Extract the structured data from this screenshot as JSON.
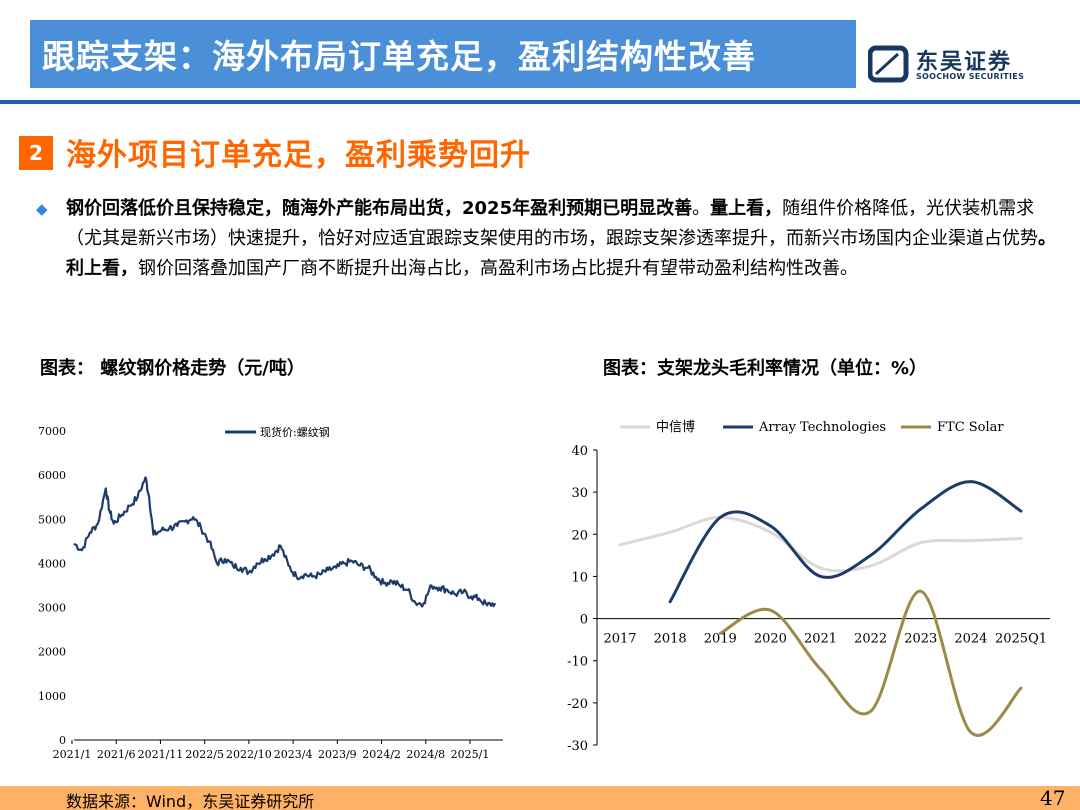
{
  "header": {
    "title": "跟踪支架：海外布局订单充足，盈利结构性改善",
    "logo_name": "东吴证券",
    "logo_sub": "SOOCHOW SECURITIES"
  },
  "section": {
    "number": "2",
    "title": "海外项目订单充足，盈利乘势回升"
  },
  "body": {
    "bullet": "◆",
    "seg1_bold": "钢价回落低价且保持稳定，随海外产能布局出货，2025年盈利预期已明显改善",
    "seg2": "。",
    "seg3_bold": "量上看，",
    "seg4": "随组件价格降低，光伏装机需求（尤其是新兴市场）快速提升，恰好对应适宜跟踪支架使用的市场，跟踪支架渗透率提升，而新兴市场国内企业渠道占优势",
    "seg5_bold": "。利上看，",
    "seg6": "钢价回落叠加国产厂商不断提升出海占比，高盈利市场占比提升有望带动盈利结构性改善。"
  },
  "captions": {
    "left": "图表： 螺纹钢价格走势（元/吨）",
    "right": "图表：支架龙头毛利率情况（单位：%）"
  },
  "footer": {
    "source": "数据来源：Wind，东吴证券研究所",
    "page": "47"
  },
  "colors": {
    "accent_orange": "#ff6600",
    "title_blue": "#4a8fd8",
    "navy": "#1f3b6b",
    "olive": "#9c8a4a",
    "light_gray": "#d9d9d9"
  },
  "chart_data": [
    {
      "type": "line",
      "title": "",
      "xlabel": "",
      "ylabel": "",
      "ylim": [
        0,
        7000
      ],
      "yticks": [
        "7000",
        "6000",
        "5000",
        "4000",
        "3000",
        "2000",
        "1000",
        "0"
      ],
      "xticks": [
        "2021/1",
        "2021/6",
        "2021/11",
        "2022/5",
        "2022/10",
        "2023/4",
        "2023/9",
        "2024/2",
        "2024/8",
        "2025/1"
      ],
      "legend": "top",
      "grid": false,
      "series": [
        {
          "name": "现货价:螺纹钢",
          "color": "#1f3b6b",
          "x": [
            "2021-01",
            "2021-02",
            "2021-03",
            "2021-04",
            "2021-05",
            "2021-05-15",
            "2021-06",
            "2021-07",
            "2021-08",
            "2021-09",
            "2021-10",
            "2021-10-15",
            "2021-11",
            "2021-12",
            "2022-01",
            "2022-02",
            "2022-03",
            "2022-04",
            "2022-05",
            "2022-06",
            "2022-07",
            "2022-08",
            "2022-09",
            "2022-10",
            "2022-11",
            "2022-12",
            "2023-01",
            "2023-02",
            "2023-03",
            "2023-04",
            "2023-05",
            "2023-06",
            "2023-07",
            "2023-08",
            "2023-09",
            "2023-10",
            "2023-11",
            "2023-12",
            "2024-01",
            "2024-02",
            "2024-03",
            "2024-04",
            "2024-05",
            "2024-06",
            "2024-07",
            "2024-08",
            "2024-09",
            "2024-10",
            "2024-11",
            "2024-12",
            "2025-01",
            "2025-02",
            "2025-03",
            "2025-04",
            "2025-05",
            "2025-06"
          ],
          "y": [
            4450,
            4300,
            4700,
            4900,
            5700,
            5200,
            4900,
            5100,
            5300,
            5500,
            5950,
            5500,
            4650,
            4750,
            4800,
            4850,
            4950,
            5050,
            4800,
            4500,
            4000,
            4100,
            3950,
            3900,
            3800,
            4000,
            4100,
            4200,
            4400,
            3950,
            3700,
            3750,
            3700,
            3750,
            3850,
            3900,
            4000,
            4050,
            3950,
            3900,
            3700,
            3550,
            3600,
            3500,
            3400,
            3100,
            3100,
            3500,
            3450,
            3400,
            3300,
            3350,
            3250,
            3200,
            3050,
            3100
          ]
        }
      ]
    },
    {
      "type": "line",
      "title": "",
      "xlabel": "",
      "ylabel": "",
      "ylim": [
        -30,
        40
      ],
      "yticks": [
        "40",
        "30",
        "20",
        "10",
        "0",
        "-10",
        "-20",
        "-30"
      ],
      "categories": [
        "2017",
        "2018",
        "2019",
        "2020",
        "2021",
        "2022",
        "2023",
        "2024",
        "2025Q1"
      ],
      "legend": "top",
      "grid": false,
      "series": [
        {
          "name": "中信博",
          "color": "#d9d9d9",
          "values": [
            17.5,
            20.5,
            24.0,
            20.5,
            12.0,
            12.5,
            18.0,
            18.5,
            19.0
          ]
        },
        {
          "name": "Array Technologies",
          "color": "#1f3b6b",
          "values": [
            null,
            4.0,
            24.0,
            22.0,
            10.0,
            15.0,
            26.0,
            32.5,
            25.5
          ]
        },
        {
          "name": "FTC Solar",
          "color": "#9c8a4a",
          "values": [
            null,
            null,
            -3.5,
            2.0,
            -12.0,
            -22.0,
            6.5,
            -27.0,
            -16.5
          ]
        }
      ]
    }
  ]
}
